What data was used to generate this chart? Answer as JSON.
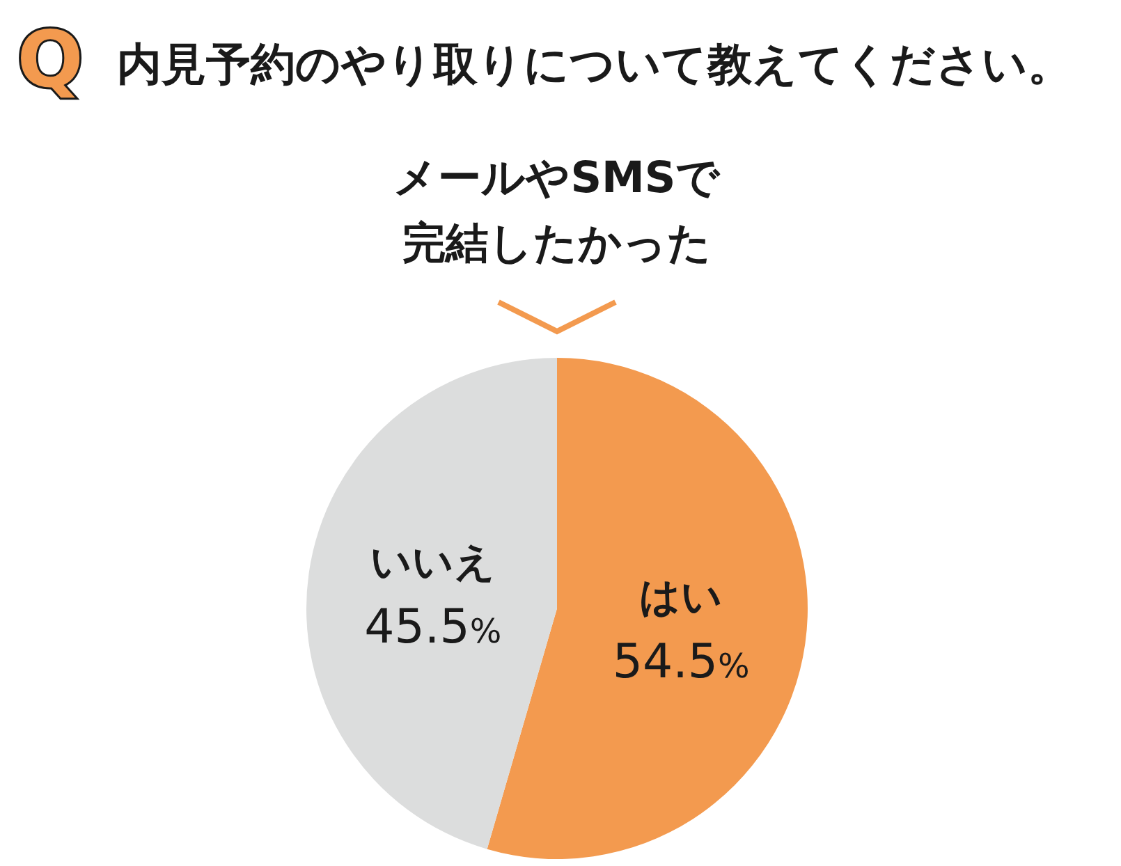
{
  "chart_data": {
    "type": "pie",
    "title": "内見予約のやり取りについて教えてください。",
    "subtitle": "メールやSMSで完結したかった",
    "categories": [
      "はい",
      "いいえ"
    ],
    "values": [
      54.5,
      45.5
    ],
    "colors": [
      "#f39a4f",
      "#dcdddd"
    ],
    "value_labels": [
      "54.5%",
      "45.5%"
    ],
    "annotations": [
      "Q"
    ]
  }
}
